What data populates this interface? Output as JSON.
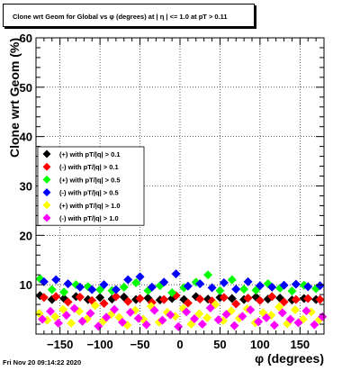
{
  "chart_data": {
    "type": "scatter",
    "title": "Clone wrt Geom for Global vs φ (degrees) at | η | <= 1.0 at pT > 0.11",
    "xlabel": "φ (degrees)",
    "ylabel": "Clone wrt Geom (%)",
    "xlim": [
      -180,
      180
    ],
    "ylim": [
      0,
      60
    ],
    "x_ticks": [
      -150,
      -100,
      -50,
      0,
      50,
      100,
      150
    ],
    "x_tick_labels": [
      "−150",
      "−100",
      "−50",
      "0",
      "50",
      "100",
      "150"
    ],
    "y_ticks": [
      0,
      10,
      20,
      30,
      40,
      50,
      60
    ],
    "y_tick_labels": [
      "",
      "10",
      "20",
      "30",
      "40",
      "50",
      "60"
    ],
    "grid": true,
    "legend_position": "left-middle",
    "series": [
      {
        "name": "(+) with pT/|q| > 0.1",
        "color": "#000000",
        "x": [
          -175,
          -160,
          -145,
          -130,
          -115,
          -100,
          -85,
          -70,
          -55,
          -40,
          -25,
          -10,
          5,
          20,
          35,
          50,
          65,
          80,
          95,
          110,
          125,
          140,
          155,
          170
        ],
        "y": [
          7.8,
          7.0,
          7.2,
          7.6,
          7.0,
          7.4,
          7.1,
          7.5,
          7.0,
          7.3,
          6.9,
          7.2,
          7.0,
          7.6,
          7.1,
          7.4,
          7.2,
          7.0,
          7.5,
          7.1,
          7.3,
          6.9,
          7.2,
          7.0
        ]
      },
      {
        "name": "(-) with pT/|q| > 0.1",
        "color": "#ff0000",
        "x": [
          -170,
          -155,
          -140,
          -125,
          -110,
          -95,
          -80,
          -65,
          -50,
          -35,
          -20,
          -5,
          10,
          25,
          40,
          55,
          70,
          85,
          100,
          115,
          130,
          145,
          160,
          175
        ],
        "y": [
          7.4,
          7.6,
          6.5,
          7.5,
          6.8,
          6.2,
          7.6,
          6.6,
          7.2,
          6.4,
          7.0,
          7.8,
          6.3,
          7.1,
          6.7,
          7.4,
          6.1,
          7.3,
          6.8,
          7.6,
          6.5,
          7.0,
          7.2,
          7.0
        ]
      },
      {
        "name": "(+) with pT/|q| > 0.5",
        "color": "#00ff00",
        "x": [
          -175,
          -160,
          -145,
          -130,
          -115,
          -100,
          -85,
          -70,
          -55,
          -40,
          -25,
          -10,
          5,
          20,
          35,
          50,
          65,
          80,
          95,
          110,
          125,
          140,
          155,
          170
        ],
        "y": [
          11.2,
          9.0,
          8.5,
          10.0,
          9.6,
          9.0,
          8.8,
          9.5,
          10.4,
          8.8,
          9.8,
          8.4,
          9.4,
          10.5,
          12.0,
          8.8,
          11.0,
          9.1,
          8.9,
          10.2,
          9.3,
          8.7,
          9.9,
          9.2
        ]
      },
      {
        "name": "(-) with pT/|q| > 0.5",
        "color": "#0000ff",
        "x": [
          -170,
          -155,
          -140,
          -125,
          -110,
          -95,
          -80,
          -65,
          -50,
          -35,
          -20,
          -5,
          10,
          25,
          40,
          55,
          70,
          85,
          100,
          115,
          130,
          145,
          160,
          175
        ],
        "y": [
          10.6,
          11.0,
          10.2,
          9.5,
          9.0,
          10.0,
          9.0,
          11.0,
          11.6,
          9.5,
          10.5,
          12.2,
          9.7,
          10.2,
          9.4,
          10.4,
          9.1,
          10.6,
          9.8,
          9.5,
          9.9,
          10.1,
          9.6,
          9.8
        ]
      },
      {
        "name": "(+) with pT/|q| > 1.0",
        "color": "#ffff00",
        "x": [
          -176,
          -166,
          -156,
          -146,
          -136,
          -126,
          -116,
          -106,
          -96,
          -86,
          -76,
          -66,
          -56,
          -46,
          -36,
          -26,
          -16,
          -6,
          4,
          14,
          24,
          34,
          44,
          54,
          64,
          74,
          84,
          94,
          104,
          114,
          124,
          134,
          144,
          154,
          164,
          174
        ],
        "y": [
          4.2,
          2.8,
          3.5,
          5.0,
          2.2,
          4.6,
          3.1,
          5.8,
          2.6,
          4.0,
          3.4,
          1.8,
          4.8,
          3.0,
          5.6,
          2.4,
          4.4,
          3.6,
          5.2,
          2.0,
          4.1,
          3.3,
          6.0,
          2.7,
          4.7,
          3.2,
          5.1,
          2.3,
          4.3,
          3.8,
          5.5,
          2.1,
          4.9,
          3.0,
          4.5,
          2.9
        ]
      },
      {
        "name": "(-) with pT/|q| > 1.0",
        "color": "#ff00ff",
        "x": [
          -172,
          -162,
          -152,
          -142,
          -132,
          -122,
          -112,
          -102,
          -92,
          -82,
          -72,
          -62,
          -52,
          -42,
          -32,
          -22,
          -12,
          -2,
          8,
          18,
          28,
          38,
          48,
          58,
          68,
          78,
          88,
          98,
          108,
          118,
          128,
          138,
          148,
          158,
          168,
          178
        ],
        "y": [
          3.0,
          4.6,
          2.2,
          3.8,
          5.2,
          2.6,
          4.2,
          1.6,
          3.4,
          5.0,
          2.4,
          4.4,
          3.2,
          1.9,
          4.8,
          2.8,
          3.9,
          1.5,
          4.5,
          3.1,
          2.0,
          5.3,
          2.9,
          4.0,
          1.7,
          3.6,
          4.9,
          2.5,
          3.3,
          1.8,
          4.3,
          3.0,
          2.3,
          4.7,
          1.9,
          3.5
        ]
      }
    ]
  },
  "footer": {
    "timestamp": "Fri Nov 20 09:14:22 2020"
  }
}
